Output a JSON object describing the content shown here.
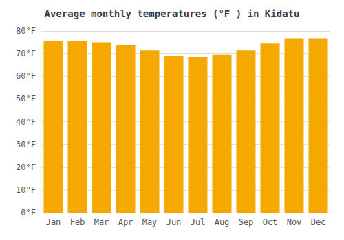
{
  "chart_data": {
    "type": "bar",
    "title": "Average monthly temperatures (°F ) in Kidatu",
    "categories": [
      "Jan",
      "Feb",
      "Mar",
      "Apr",
      "May",
      "Jun",
      "Jul",
      "Aug",
      "Sep",
      "Oct",
      "Nov",
      "Dec"
    ],
    "values": [
      75.5,
      75.5,
      75.0,
      74.0,
      71.5,
      69.0,
      68.5,
      69.5,
      71.5,
      74.5,
      76.5,
      76.5
    ],
    "color": "#F5A800",
    "ylim": [
      0,
      80
    ],
    "yticks": [
      {
        "value": 0,
        "label": "0°F"
      },
      {
        "value": 10,
        "label": "10°F"
      },
      {
        "value": 20,
        "label": "20°F"
      },
      {
        "value": 30,
        "label": "30°F"
      },
      {
        "value": 40,
        "label": "40°F"
      },
      {
        "value": 50,
        "label": "50°F"
      },
      {
        "value": 60,
        "label": "60°F"
      },
      {
        "value": 70,
        "label": "70°F"
      },
      {
        "value": 80,
        "label": "80°F"
      }
    ],
    "grid": true
  }
}
